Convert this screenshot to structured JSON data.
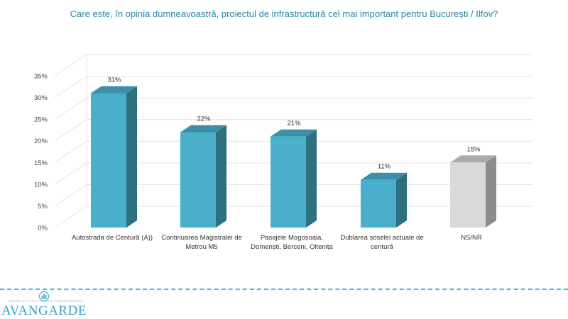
{
  "chart_data": {
    "type": "bar",
    "title": "Care este, în opinia dumneavoastră, proiectul de infrastructură cel mai important pentru București / Ilfov?",
    "categories": [
      [
        "Autostrada de Centură (A))"
      ],
      [
        "Continuarea Magistralei de",
        "Metrou M5"
      ],
      [
        "Pasajele Mogoșoaia,",
        "Domenști, Berceni, Oltenița"
      ],
      [
        "Dublarea șoselei actuale de",
        "centură"
      ],
      [
        "NS/NR"
      ]
    ],
    "values": [
      31,
      22,
      21,
      11,
      15
    ],
    "value_labels": [
      "31%",
      "22%",
      "21%",
      "11%",
      "15%"
    ],
    "ylim": [
      0,
      35
    ],
    "yticks": [
      0,
      5,
      10,
      15,
      20,
      25,
      30,
      35
    ],
    "ytick_labels": [
      "0%",
      "5%",
      "10%",
      "15%",
      "20%",
      "25%",
      "30%",
      "35%"
    ],
    "grid": true,
    "legend": "none",
    "bar_colors": {
      "main_front": "#4aafcb",
      "main_side": "#2e6f80",
      "main_top": "#3b8fa6",
      "ns_front": "#d9d9d9",
      "ns_side": "#8c8c8c",
      "ns_top": "#aaaaaa"
    }
  },
  "footer": {
    "logo_text": "AVANGARDE",
    "logo_tagline": "CENTRUL DE STUDII SOCIALE ȘI COMPORTAMENTALE",
    "accent_color": "#4db8dc"
  }
}
